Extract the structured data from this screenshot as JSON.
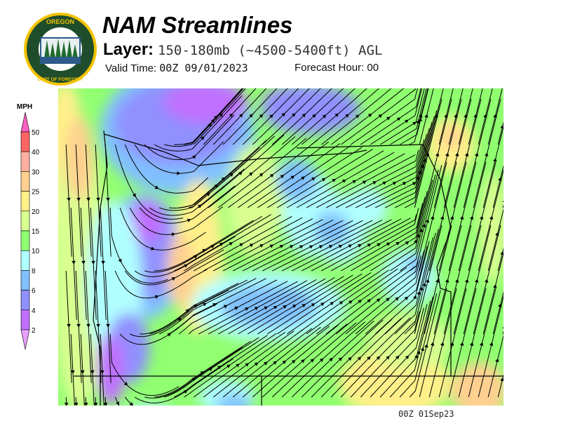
{
  "header": {
    "title": "NAM Streamlines",
    "layer_label": "Layer:",
    "layer_value": "150-180mb (~4500-5400ft) AGL",
    "valid_time_label": "Valid Time:",
    "valid_time_value": "00Z 09/01/2023",
    "forecast_hour_label": "Forecast Hour:",
    "forecast_hour_value": "00"
  },
  "logo": {
    "text_top": "OREGON",
    "text_bottom": "DEPARTMENT OF FORESTRY",
    "colors": {
      "ring": "#f2c200",
      "field": "#1f4d2b"
    }
  },
  "colorbar": {
    "unit": "MPH",
    "ticks": [
      "50",
      "40",
      "30",
      "25",
      "20",
      "15",
      "10",
      "8",
      "6",
      "4",
      "2"
    ],
    "colors": [
      "#ff5fc0",
      "#ff6464",
      "#ffb0a0",
      "#ffd090",
      "#fff08a",
      "#d8ff90",
      "#90ff70",
      "#b0ffff",
      "#80c0ff",
      "#9090ff",
      "#c070ff",
      "#e8a0ff"
    ]
  },
  "map": {
    "field": "wind speed (MPH) with streamlines",
    "speed_colors": {
      "calm": "#c070ff",
      "light": "#9090ff",
      "moderate": "#80c0ff",
      "breezy": "#b0ffff",
      "fresh": "#90ff70",
      "strong": "#d8ff90",
      "stronger": "#fff08a",
      "gusty": "#ffd090"
    }
  },
  "footer": {
    "timestamp": "00Z 01Sep23"
  }
}
